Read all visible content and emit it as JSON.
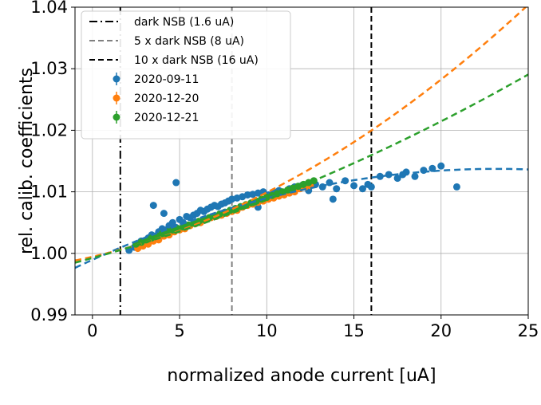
{
  "chart_data": {
    "type": "scatter",
    "title": "",
    "xlabel": "normalized anode current [uA]",
    "ylabel": "rel. calib. coefficients",
    "xlim": [
      -1,
      25
    ],
    "ylim": [
      0.99,
      1.04
    ],
    "xticks": [
      0,
      5,
      10,
      15,
      20,
      25
    ],
    "yticks": [
      0.99,
      1.0,
      1.01,
      1.02,
      1.03,
      1.04
    ],
    "xtick_labels": [
      "0",
      "5",
      "10",
      "15",
      "20",
      "25"
    ],
    "ytick_labels": [
      "0.99",
      "1.00",
      "1.01",
      "1.02",
      "1.03",
      "1.04"
    ],
    "grid": true,
    "legend_position": "top-left",
    "vlines": [
      {
        "name": "dark NSB (1.6 uA)",
        "x": 1.6,
        "color": "#000000",
        "style": "dashdot"
      },
      {
        "name": "5 x dark NSB (8 uA)",
        "x": 8.0,
        "color": "#808080",
        "style": "dashed"
      },
      {
        "name": "10 x dark NSB (16 uA)",
        "x": 16.0,
        "color": "#000000",
        "style": "dashed"
      }
    ],
    "series": [
      {
        "name": "2020-09-11",
        "color": "#1f77b4",
        "x": [
          2.1,
          2.4,
          2.6,
          2.8,
          3.0,
          3.2,
          3.4,
          3.6,
          3.8,
          4.0,
          4.2,
          4.4,
          4.6,
          4.8,
          5.0,
          5.2,
          5.4,
          5.6,
          5.8,
          6.0,
          6.2,
          6.4,
          6.6,
          6.8,
          7.0,
          7.2,
          7.4,
          7.6,
          7.8,
          8.0,
          8.3,
          8.6,
          8.9,
          9.2,
          9.5,
          9.8,
          10.1,
          10.4,
          10.7,
          11.0,
          11.3,
          11.6,
          12.0,
          12.4,
          12.8,
          13.2,
          13.6,
          14.0,
          14.5,
          15.0,
          15.5,
          16.0,
          16.5,
          17.0,
          17.5,
          18.0,
          18.5,
          19.0,
          19.5,
          20.0,
          20.9,
          4.8,
          4.1,
          3.5,
          9.5,
          13.8,
          15.8,
          17.8
        ],
        "y": [
          1.0005,
          1.001,
          1.0015,
          1.002,
          1.0018,
          1.0025,
          1.003,
          1.0028,
          1.0035,
          1.004,
          1.0038,
          1.0045,
          1.005,
          1.0042,
          1.0055,
          1.005,
          1.006,
          1.0058,
          1.0062,
          1.0065,
          1.007,
          1.0068,
          1.0072,
          1.0075,
          1.0078,
          1.0076,
          1.008,
          1.0082,
          1.0085,
          1.0088,
          1.009,
          1.0092,
          1.0095,
          1.0096,
          1.0098,
          1.01,
          1.0095,
          1.01,
          1.0102,
          1.0098,
          1.0105,
          1.0108,
          1.011,
          1.0102,
          1.0112,
          1.0108,
          1.0115,
          1.0105,
          1.0118,
          1.011,
          1.0105,
          1.0108,
          1.0125,
          1.0128,
          1.0122,
          1.0132,
          1.0125,
          1.0135,
          1.0138,
          1.0142,
          1.0108,
          1.0115,
          1.0065,
          1.0078,
          1.0075,
          1.0088,
          1.0112,
          1.0128
        ]
      },
      {
        "name": "2020-12-20",
        "color": "#ff7f0e",
        "x": [
          2.6,
          2.9,
          3.2,
          3.5,
          3.8,
          4.1,
          4.4,
          4.7,
          5.0,
          5.3,
          5.6,
          5.9,
          6.2,
          6.5,
          6.8,
          7.1,
          7.4,
          7.7,
          8.0,
          8.3,
          8.6,
          8.9,
          9.2,
          9.5,
          9.8,
          10.1,
          10.4,
          10.7,
          11.0,
          11.3,
          11.6,
          11.9,
          12.2,
          12.5
        ],
        "y": [
          1.0008,
          1.0012,
          1.0015,
          1.002,
          1.0022,
          1.0028,
          1.003,
          1.0035,
          1.0038,
          1.004,
          1.0045,
          1.0048,
          1.005,
          1.0055,
          1.0058,
          1.006,
          1.0062,
          1.0065,
          1.0068,
          1.007,
          1.0075,
          1.0078,
          1.008,
          1.0083,
          1.0085,
          1.0088,
          1.009,
          1.0093,
          1.0095,
          1.0098,
          1.01,
          1.0105,
          1.0108,
          1.011
        ]
      },
      {
        "name": "2020-12-21",
        "color": "#2ca02c",
        "x": [
          2.5,
          2.8,
          3.1,
          3.4,
          3.7,
          4.0,
          4.3,
          4.6,
          4.9,
          5.2,
          5.5,
          5.8,
          6.1,
          6.4,
          6.7,
          7.0,
          7.3,
          7.6,
          7.9,
          8.2,
          8.5,
          8.8,
          9.1,
          9.4,
          9.7,
          10.0,
          10.3,
          10.6,
          10.9,
          11.2,
          11.5,
          11.8,
          12.1,
          12.4,
          12.7
        ],
        "y": [
          1.0015,
          1.0018,
          1.0022,
          1.0025,
          1.0028,
          1.0032,
          1.0035,
          1.0038,
          1.004,
          1.0043,
          1.0046,
          1.0049,
          1.0052,
          1.0055,
          1.0058,
          1.0061,
          1.0064,
          1.0067,
          1.007,
          1.0073,
          1.0076,
          1.0079,
          1.0082,
          1.0085,
          1.0088,
          1.0091,
          1.0094,
          1.0097,
          1.01,
          1.0103,
          1.0106,
          1.0109,
          1.0112,
          1.0115,
          1.0118
        ]
      }
    ],
    "fits": [
      {
        "series": "2020-09-11",
        "color": "#1f77b4",
        "style": "dashed",
        "x_range": [
          -1,
          25
        ],
        "poly": [
          0.99895,
          0.001275,
          -2.75e-05
        ]
      },
      {
        "series": "2020-12-20",
        "color": "#ff7f0e",
        "style": "dashed",
        "x_range": [
          -1,
          25
        ],
        "poly": [
          0.99945,
          0.00065,
          3.95e-05
        ]
      },
      {
        "series": "2020-12-21",
        "color": "#2ca02c",
        "style": "dashed",
        "x_range": [
          -1,
          25
        ],
        "poly": [
          0.99925,
          0.00078,
          1.65e-05
        ]
      }
    ]
  }
}
